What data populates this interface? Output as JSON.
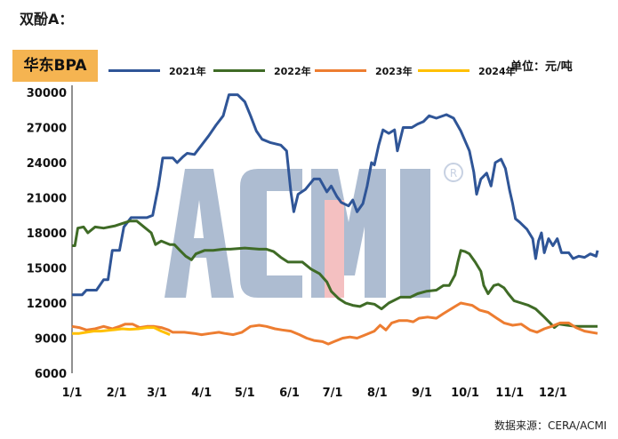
{
  "page": {
    "heading": "双酚A：",
    "badge": "华东BPA",
    "unit": "单位：元/吨",
    "source": "数据来源：CERA/ACMI",
    "watermark": "ACMI"
  },
  "chart_data": {
    "type": "line",
    "title": "华东BPA",
    "xlabel": "",
    "ylabel": "单位：元/吨",
    "x_ticks": [
      "1/1",
      "2/1",
      "3/1",
      "4/1",
      "5/1",
      "6/1",
      "7/1",
      "8/1",
      "9/1",
      "10/1",
      "11/1",
      "12/1"
    ],
    "y_ticks": [
      6000,
      9000,
      12000,
      15000,
      18000,
      21000,
      24000,
      27000,
      30000
    ],
    "ylim": [
      6000,
      30000
    ],
    "xlim": [
      0,
      365
    ],
    "grid": false,
    "legend_position": "top",
    "series": [
      {
        "name": "2021年",
        "color": "#2f5597",
        "points": [
          [
            0,
            12700
          ],
          [
            7,
            12700
          ],
          [
            10,
            13100
          ],
          [
            17,
            13100
          ],
          [
            22,
            14000
          ],
          [
            25,
            14000
          ],
          [
            28,
            16500
          ],
          [
            33,
            16500
          ],
          [
            36,
            18500
          ],
          [
            41,
            19300
          ],
          [
            52,
            19300
          ],
          [
            56,
            19500
          ],
          [
            60,
            22000
          ],
          [
            63,
            24400
          ],
          [
            70,
            24400
          ],
          [
            73,
            24000
          ],
          [
            77,
            24500
          ],
          [
            80,
            24800
          ],
          [
            85,
            24700
          ],
          [
            90,
            25500
          ],
          [
            95,
            26300
          ],
          [
            100,
            27200
          ],
          [
            105,
            28000
          ],
          [
            109,
            29800
          ],
          [
            115,
            29800
          ],
          [
            120,
            29200
          ],
          [
            124,
            28000
          ],
          [
            128,
            26700
          ],
          [
            132,
            26000
          ],
          [
            138,
            25700
          ],
          [
            145,
            25500
          ],
          [
            149,
            25000
          ],
          [
            152,
            21500
          ],
          [
            154,
            19800
          ],
          [
            157,
            21300
          ],
          [
            162,
            21700
          ],
          [
            168,
            22600
          ],
          [
            172,
            22600
          ],
          [
            177,
            21500
          ],
          [
            180,
            22000
          ],
          [
            184,
            21100
          ],
          [
            187,
            20600
          ],
          [
            192,
            20300
          ],
          [
            195,
            20800
          ],
          [
            198,
            19800
          ],
          [
            202,
            20500
          ],
          [
            205,
            22000
          ],
          [
            208,
            24000
          ],
          [
            210,
            23800
          ],
          [
            213,
            25500
          ],
          [
            216,
            26800
          ],
          [
            220,
            26500
          ],
          [
            224,
            26800
          ],
          [
            226,
            25000
          ],
          [
            230,
            27000
          ],
          [
            236,
            27000
          ],
          [
            240,
            27300
          ],
          [
            244,
            27500
          ],
          [
            248,
            28000
          ],
          [
            253,
            27800
          ],
          [
            260,
            28100
          ],
          [
            265,
            27800
          ],
          [
            270,
            26700
          ],
          [
            276,
            25000
          ],
          [
            279,
            23200
          ],
          [
            281,
            21300
          ],
          [
            284,
            22600
          ],
          [
            288,
            23100
          ],
          [
            291,
            22000
          ],
          [
            294,
            24000
          ],
          [
            298,
            24300
          ],
          [
            301,
            23500
          ],
          [
            304,
            21600
          ],
          [
            306,
            20500
          ],
          [
            308,
            19200
          ],
          [
            311,
            18900
          ],
          [
            316,
            18300
          ],
          [
            320,
            17500
          ],
          [
            322,
            15800
          ],
          [
            324,
            17300
          ],
          [
            326,
            18000
          ],
          [
            328,
            16300
          ],
          [
            331,
            17500
          ],
          [
            334,
            16900
          ],
          [
            337,
            17500
          ],
          [
            340,
            16300
          ],
          [
            345,
            16300
          ],
          [
            348,
            15800
          ],
          [
            352,
            16000
          ],
          [
            356,
            15900
          ],
          [
            360,
            16200
          ],
          [
            364,
            16000
          ],
          [
            365,
            16500
          ]
        ]
      },
      {
        "name": "2022年",
        "color": "#3f6b26",
        "points": [
          [
            0,
            16900
          ],
          [
            2,
            16900
          ],
          [
            4,
            18400
          ],
          [
            8,
            18500
          ],
          [
            11,
            18000
          ],
          [
            16,
            18500
          ],
          [
            22,
            18400
          ],
          [
            30,
            18600
          ],
          [
            40,
            19000
          ],
          [
            45,
            19000
          ],
          [
            50,
            18500
          ],
          [
            55,
            18000
          ],
          [
            58,
            17000
          ],
          [
            62,
            17300
          ],
          [
            68,
            17000
          ],
          [
            71,
            17000
          ],
          [
            75,
            16500
          ],
          [
            79,
            16000
          ],
          [
            83,
            15700
          ],
          [
            86,
            16200
          ],
          [
            92,
            16500
          ],
          [
            98,
            16500
          ],
          [
            105,
            16600
          ],
          [
            110,
            16600
          ],
          [
            120,
            16700
          ],
          [
            130,
            16600
          ],
          [
            135,
            16600
          ],
          [
            140,
            16400
          ],
          [
            145,
            15900
          ],
          [
            150,
            15500
          ],
          [
            155,
            15500
          ],
          [
            160,
            15500
          ],
          [
            166,
            14900
          ],
          [
            172,
            14500
          ],
          [
            177,
            13800
          ],
          [
            180,
            13000
          ],
          [
            185,
            12400
          ],
          [
            190,
            12000
          ],
          [
            195,
            11800
          ],
          [
            200,
            11700
          ],
          [
            205,
            12000
          ],
          [
            210,
            11900
          ],
          [
            215,
            11500
          ],
          [
            220,
            12000
          ],
          [
            228,
            12500
          ],
          [
            235,
            12500
          ],
          [
            240,
            12800
          ],
          [
            246,
            13000
          ],
          [
            253,
            13100
          ],
          [
            258,
            13500
          ],
          [
            262,
            13500
          ],
          [
            266,
            14400
          ],
          [
            268,
            15500
          ],
          [
            270,
            16500
          ],
          [
            273,
            16400
          ],
          [
            276,
            16200
          ],
          [
            280,
            15500
          ],
          [
            284,
            14700
          ],
          [
            286,
            13500
          ],
          [
            289,
            12800
          ],
          [
            293,
            13500
          ],
          [
            296,
            13600
          ],
          [
            300,
            13300
          ],
          [
            303,
            12800
          ],
          [
            307,
            12200
          ],
          [
            312,
            12000
          ],
          [
            317,
            11800
          ],
          [
            322,
            11500
          ],
          [
            328,
            10800
          ],
          [
            332,
            10300
          ],
          [
            335,
            9900
          ],
          [
            338,
            10200
          ],
          [
            344,
            10100
          ],
          [
            350,
            10000
          ],
          [
            356,
            10000
          ],
          [
            365,
            10000
          ]
        ]
      },
      {
        "name": "2023年",
        "color": "#ed7d31",
        "points": [
          [
            0,
            10000
          ],
          [
            5,
            9900
          ],
          [
            10,
            9700
          ],
          [
            16,
            9800
          ],
          [
            22,
            10000
          ],
          [
            28,
            9800
          ],
          [
            33,
            10000
          ],
          [
            37,
            10200
          ],
          [
            42,
            10200
          ],
          [
            47,
            9900
          ],
          [
            52,
            10000
          ],
          [
            57,
            10000
          ],
          [
            62,
            9900
          ],
          [
            67,
            9700
          ],
          [
            70,
            9500
          ],
          [
            78,
            9500
          ],
          [
            85,
            9400
          ],
          [
            90,
            9300
          ],
          [
            96,
            9400
          ],
          [
            102,
            9500
          ],
          [
            106,
            9400
          ],
          [
            112,
            9300
          ],
          [
            118,
            9500
          ],
          [
            124,
            10000
          ],
          [
            130,
            10100
          ],
          [
            135,
            10000
          ],
          [
            141,
            9800
          ],
          [
            146,
            9700
          ],
          [
            152,
            9600
          ],
          [
            158,
            9300
          ],
          [
            163,
            9000
          ],
          [
            168,
            8800
          ],
          [
            174,
            8700
          ],
          [
            178,
            8500
          ],
          [
            182,
            8700
          ],
          [
            188,
            9000
          ],
          [
            193,
            9100
          ],
          [
            198,
            9000
          ],
          [
            204,
            9300
          ],
          [
            210,
            9600
          ],
          [
            214,
            10100
          ],
          [
            218,
            9700
          ],
          [
            222,
            10300
          ],
          [
            227,
            10500
          ],
          [
            233,
            10500
          ],
          [
            237,
            10400
          ],
          [
            241,
            10700
          ],
          [
            247,
            10800
          ],
          [
            253,
            10700
          ],
          [
            258,
            11100
          ],
          [
            262,
            11400
          ],
          [
            266,
            11700
          ],
          [
            270,
            12000
          ],
          [
            274,
            11900
          ],
          [
            278,
            11800
          ],
          [
            283,
            11400
          ],
          [
            289,
            11200
          ],
          [
            295,
            10700
          ],
          [
            300,
            10300
          ],
          [
            306,
            10100
          ],
          [
            312,
            10200
          ],
          [
            318,
            9700
          ],
          [
            323,
            9500
          ],
          [
            328,
            9800
          ],
          [
            333,
            10000
          ],
          [
            339,
            10300
          ],
          [
            345,
            10300
          ],
          [
            350,
            9900
          ],
          [
            356,
            9600
          ],
          [
            365,
            9400
          ]
        ]
      },
      {
        "name": "2024年",
        "color": "#ffc000",
        "points": [
          [
            0,
            9400
          ],
          [
            5,
            9400
          ],
          [
            10,
            9500
          ],
          [
            15,
            9600
          ],
          [
            20,
            9600
          ],
          [
            28,
            9700
          ],
          [
            35,
            9800
          ],
          [
            40,
            9750
          ],
          [
            46,
            9800
          ],
          [
            52,
            9900
          ],
          [
            57,
            9900
          ],
          [
            62,
            9600
          ],
          [
            66,
            9400
          ],
          [
            68,
            9300
          ]
        ]
      }
    ]
  }
}
